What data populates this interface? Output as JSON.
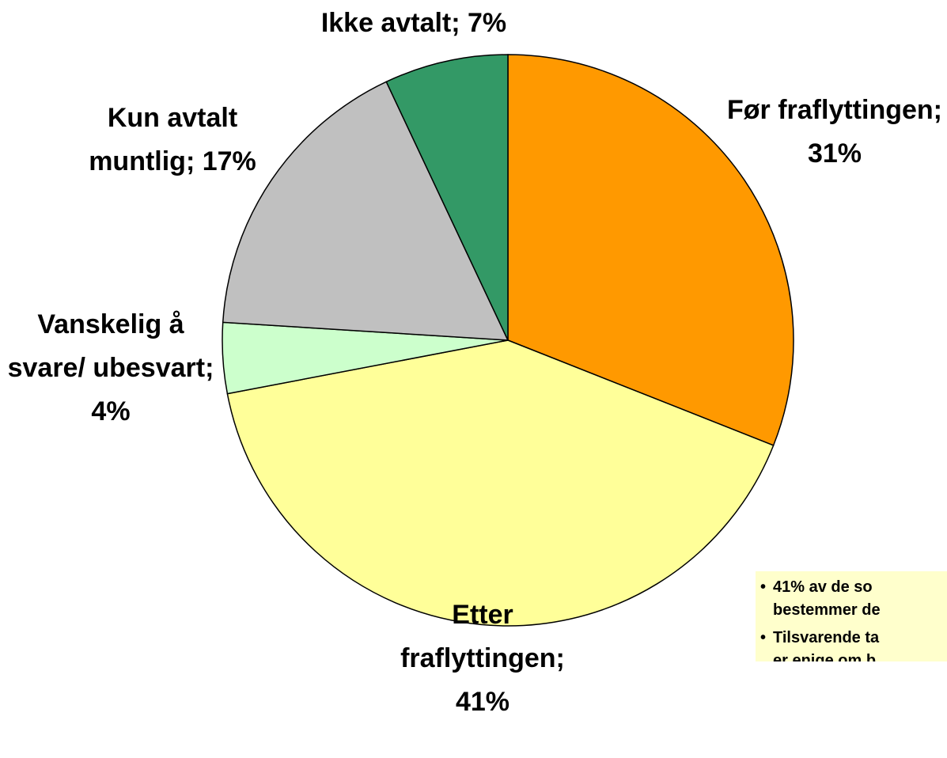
{
  "chart_data": {
    "type": "pie",
    "values": [
      31,
      41,
      4,
      17,
      7
    ],
    "value_labels": [
      "Før fraflyttingen; 31%",
      "Etter fraflyttingen; 41%",
      "Vanskelig å svare/ ubesvart; 4%",
      "Kun avtalt muntlig; 17%",
      "Ikke avtalt; 7%"
    ],
    "colors": [
      "#FF9900",
      "#FFFF99",
      "#CCFFCC",
      "#C0C0C0",
      "#339966"
    ],
    "annotations": [
      [
        "41% av de so",
        "bestemmer de"
      ],
      [
        "Tilsvarende ta",
        "er enige om b"
      ]
    ]
  }
}
